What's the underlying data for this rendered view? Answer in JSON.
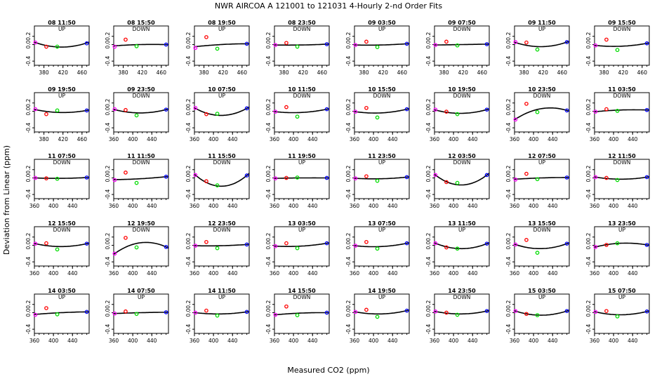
{
  "header": {
    "title": "NWR   AIRCOA A   121001 to 121031   4-Hourly 2-nd Order Fits"
  },
  "axes": {
    "ylabel": "Deviation from Linear (ppm)",
    "xlabel": "Measured CO2 (ppm)",
    "yticks": [
      "-0.4",
      "0.0",
      "0.2"
    ],
    "xticks_a": [
      "360",
      "400",
      "440"
    ],
    "xticks_b": [
      "380",
      "420",
      "460"
    ]
  },
  "colors": {
    "pt1": "#ff00ff",
    "pt2": "#ff0000",
    "pt3": "#00dd00",
    "pt4": "#0000ff",
    "curve": "#000000"
  },
  "chart_data": {
    "type": "scatter",
    "xlim": [
      360,
      475
    ],
    "ylim": [
      -0.5,
      0.45
    ],
    "standards_x": [
      362,
      385,
      408,
      470
    ],
    "panels": [
      {
        "label": "08 11:50",
        "dir": "UP",
        "ticks": "b",
        "points": [
          0.05,
          -0.05,
          -0.05,
          0.03
        ],
        "fit": [
          0.05,
          -0.06,
          0.04
        ]
      },
      {
        "label": "08 15:50",
        "dir": "DOWN",
        "ticks": "b",
        "points": [
          -0.05,
          0.12,
          -0.04,
          0.0
        ],
        "fit": [
          -0.03,
          0.0,
          0.0
        ]
      },
      {
        "label": "08 19:50",
        "dir": "UP",
        "ticks": "b",
        "points": [
          -0.08,
          0.18,
          -0.1,
          0.02
        ],
        "fit": [
          -0.05,
          0.0,
          0.02
        ]
      },
      {
        "label": "08 23:50",
        "dir": "DOWN",
        "ticks": "b",
        "points": [
          -0.01,
          0.04,
          -0.05,
          0.01
        ],
        "fit": [
          -0.01,
          -0.01,
          0.01
        ]
      },
      {
        "label": "09 03:50",
        "dir": "UP",
        "ticks": "b",
        "points": [
          -0.01,
          0.07,
          -0.06,
          0.02
        ],
        "fit": [
          -0.01,
          -0.01,
          0.02
        ]
      },
      {
        "label": "09 07:50",
        "dir": "DOWN",
        "ticks": "b",
        "points": [
          -0.01,
          0.07,
          -0.02,
          0.01
        ],
        "fit": [
          -0.01,
          0.0,
          0.01
        ]
      },
      {
        "label": "09 11:50",
        "dir": "UP",
        "ticks": "b",
        "points": [
          0.06,
          0.05,
          -0.12,
          0.06
        ],
        "fit": [
          0.05,
          -0.05,
          0.06
        ]
      },
      {
        "label": "09 15:50",
        "dir": "DOWN",
        "ticks": "b",
        "points": [
          -0.02,
          0.12,
          -0.13,
          0.03
        ],
        "fit": [
          -0.02,
          -0.04,
          0.03
        ]
      },
      {
        "label": "09 19:50",
        "dir": "UP",
        "ticks": "b",
        "points": [
          0.05,
          -0.07,
          0.02,
          0.02
        ],
        "fit": [
          0.04,
          -0.03,
          0.02
        ]
      },
      {
        "label": "09 23:50",
        "dir": "DOWN",
        "ticks": "a",
        "points": [
          0.05,
          0.03,
          -0.1,
          0.04
        ],
        "fit": [
          0.04,
          -0.04,
          0.04
        ]
      },
      {
        "label": "10 07:50",
        "dir": "UP",
        "ticks": "a",
        "points": [
          0.08,
          -0.07,
          -0.06,
          0.07
        ],
        "fit": [
          0.07,
          -0.1,
          0.07
        ]
      },
      {
        "label": "10 11:50",
        "dir": "DOWN",
        "ticks": "a",
        "points": [
          -0.01,
          0.1,
          -0.13,
          0.05
        ],
        "fit": [
          -0.01,
          -0.03,
          0.05
        ]
      },
      {
        "label": "10 15:50",
        "dir": "DOWN",
        "ticks": "a",
        "points": [
          -0.01,
          0.08,
          -0.15,
          0.05
        ],
        "fit": [
          -0.01,
          -0.04,
          0.05
        ]
      },
      {
        "label": "10 19:50",
        "dir": "DOWN",
        "ticks": "a",
        "points": [
          0.04,
          -0.01,
          -0.07,
          0.04
        ],
        "fit": [
          0.03,
          -0.05,
          0.04
        ]
      },
      {
        "label": "10 23:50",
        "dir": "DOWN",
        "ticks": "a",
        "points": [
          -0.2,
          0.18,
          -0.02,
          0.02
        ],
        "fit": [
          -0.19,
          0.06,
          0.02
        ]
      },
      {
        "label": "11 03:50",
        "dir": "DOWN",
        "ticks": "a",
        "points": [
          -0.01,
          0.05,
          0.01,
          0.03
        ],
        "fit": [
          -0.01,
          0.03,
          0.03
        ]
      },
      {
        "label": "11 07:50",
        "dir": "DOWN",
        "ticks": "a",
        "points": [
          0.0,
          -0.01,
          -0.02,
          0.01
        ],
        "fit": [
          0.0,
          -0.01,
          0.01
        ]
      },
      {
        "label": "11 11:50",
        "dir": "DOWN",
        "ticks": "a",
        "points": [
          -0.05,
          0.13,
          -0.12,
          0.03
        ],
        "fit": [
          -0.04,
          -0.02,
          0.03
        ]
      },
      {
        "label": "11 15:50",
        "dir": "DOWN",
        "ticks": "a",
        "points": [
          0.07,
          -0.08,
          -0.18,
          0.06
        ],
        "fit": [
          0.07,
          -0.2,
          0.06
        ]
      },
      {
        "label": "11 19:50",
        "dir": "UP",
        "ticks": "a",
        "points": [
          -0.01,
          0.0,
          0.01,
          0.0
        ],
        "fit": [
          -0.01,
          0.0,
          0.0
        ]
      },
      {
        "label": "11 23:50",
        "dir": "UP",
        "ticks": "a",
        "points": [
          -0.01,
          0.04,
          -0.07,
          0.02
        ],
        "fit": [
          -0.01,
          -0.02,
          0.02
        ]
      },
      {
        "label": "12 03:50",
        "dir": "DOWN",
        "ticks": "a",
        "points": [
          0.07,
          -0.1,
          -0.12,
          0.07
        ],
        "fit": [
          0.07,
          -0.17,
          0.07
        ]
      },
      {
        "label": "12 07:50",
        "dir": "UP",
        "ticks": "a",
        "points": [
          -0.04,
          0.1,
          -0.03,
          0.01
        ],
        "fit": [
          -0.03,
          0.0,
          0.01
        ]
      },
      {
        "label": "12 11:50",
        "dir": "DOWN",
        "ticks": "a",
        "points": [
          0.02,
          0.0,
          -0.05,
          0.02
        ],
        "fit": [
          0.02,
          -0.03,
          0.02
        ]
      },
      {
        "label": "12 15:50",
        "dir": "DOWN",
        "ticks": "a",
        "points": [
          0.04,
          0.05,
          -0.1,
          0.04
        ],
        "fit": [
          0.04,
          -0.03,
          0.04
        ]
      },
      {
        "label": "12 19:50",
        "dir": "DOWN",
        "ticks": "a",
        "points": [
          -0.2,
          0.18,
          -0.05,
          -0.04
        ],
        "fit": [
          -0.2,
          0.06,
          -0.04
        ]
      },
      {
        "label": "12 23:50",
        "dir": "DOWN",
        "ticks": "a",
        "points": [
          -0.01,
          0.08,
          -0.07,
          0.02
        ],
        "fit": [
          -0.01,
          -0.01,
          0.02
        ]
      },
      {
        "label": "13 03:50",
        "dir": "UP",
        "ticks": "a",
        "points": [
          -0.02,
          0.05,
          -0.07,
          0.05
        ],
        "fit": [
          -0.02,
          -0.02,
          0.05
        ]
      },
      {
        "label": "13 07:50",
        "dir": "UP",
        "ticks": "a",
        "points": [
          -0.01,
          0.08,
          -0.08,
          0.05
        ],
        "fit": [
          -0.01,
          -0.03,
          0.05
        ]
      },
      {
        "label": "13 11:50",
        "dir": "UP",
        "ticks": "a",
        "points": [
          0.05,
          -0.05,
          -0.08,
          0.04
        ],
        "fit": [
          0.05,
          -0.08,
          0.04
        ]
      },
      {
        "label": "13 15:50",
        "dir": "DOWN",
        "ticks": "a",
        "points": [
          0.02,
          0.13,
          -0.18,
          0.04
        ],
        "fit": [
          0.02,
          -0.08,
          0.04
        ]
      },
      {
        "label": "13 23:50",
        "dir": "UP",
        "ticks": "a",
        "points": [
          -0.04,
          0.01,
          0.05,
          0.01
        ],
        "fit": [
          -0.04,
          0.05,
          0.01
        ]
      },
      {
        "label": "14 03:50",
        "dir": "UP",
        "ticks": "a",
        "points": [
          -0.05,
          0.11,
          -0.04,
          0.02
        ],
        "fit": [
          -0.04,
          0.0,
          0.02
        ]
      },
      {
        "label": "14 07:50",
        "dir": "UP",
        "ticks": "a",
        "points": [
          -0.02,
          0.03,
          -0.03,
          0.01
        ],
        "fit": [
          -0.02,
          0.0,
          0.01
        ]
      },
      {
        "label": "14 11:50",
        "dir": "UP",
        "ticks": "a",
        "points": [
          0.0,
          0.05,
          -0.07,
          0.02
        ],
        "fit": [
          0.0,
          -0.03,
          0.02
        ]
      },
      {
        "label": "14 15:50",
        "dir": "DOWN",
        "ticks": "a",
        "points": [
          -0.05,
          0.15,
          -0.06,
          0.0
        ],
        "fit": [
          -0.05,
          -0.01,
          0.0
        ]
      },
      {
        "label": "14 19:50",
        "dir": "UP",
        "ticks": "a",
        "points": [
          0.02,
          0.07,
          -0.1,
          0.05
        ],
        "fit": [
          0.02,
          -0.03,
          0.05
        ]
      },
      {
        "label": "14 23:50",
        "dir": "DOWN",
        "ticks": "a",
        "points": [
          0.03,
          0.0,
          -0.05,
          0.04
        ],
        "fit": [
          0.03,
          -0.03,
          0.04
        ]
      },
      {
        "label": "15 03:50",
        "dir": "UP",
        "ticks": "a",
        "points": [
          0.04,
          -0.03,
          -0.06,
          0.04
        ],
        "fit": [
          0.04,
          -0.06,
          0.04
        ]
      },
      {
        "label": "15 07:50",
        "dir": "UP",
        "ticks": "a",
        "points": [
          0.02,
          0.04,
          -0.09,
          0.03
        ],
        "fit": [
          0.02,
          -0.05,
          0.03
        ]
      }
    ]
  }
}
